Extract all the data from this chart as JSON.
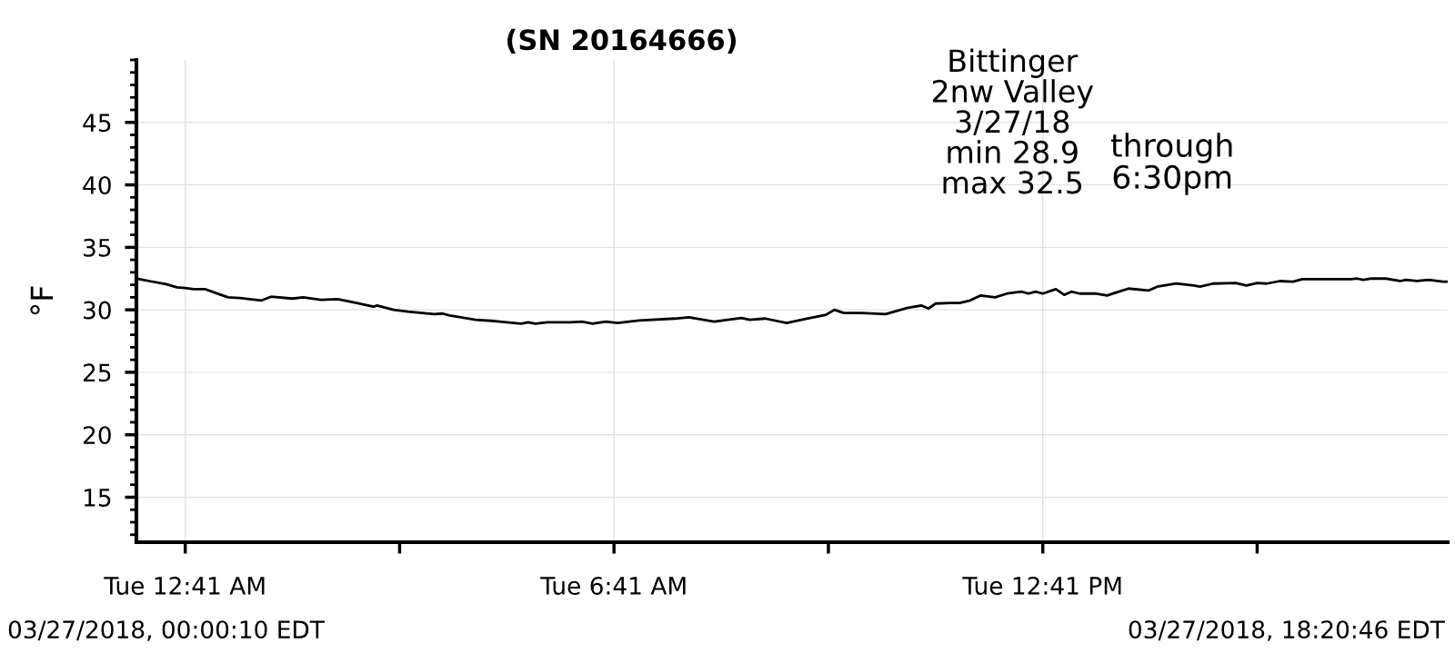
{
  "chart_data": {
    "type": "line",
    "title": "(SN 20164666)",
    "ylabel": "°F",
    "annotations": [
      "Bittinger\n2nw Valley\n3/27/18\nmin 28.9\nmax 32.5",
      "through\n6:30pm",
      "03/27/2018, 00:00:10 EDT",
      "03/27/2018, 18:20:46 EDT"
    ],
    "xlim": [
      "2018-03-27T00:00",
      "2018-03-27T18:21"
    ],
    "ylim": [
      11.4,
      50
    ],
    "xticks": [
      {
        "value": "2018-03-27T00:41",
        "label": "Tue 12:41 AM"
      },
      {
        "value": "2018-03-27T03:41",
        "label": null
      },
      {
        "value": "2018-03-27T06:41",
        "label": "Tue 6:41 AM"
      },
      {
        "value": "2018-03-27T09:41",
        "label": null
      },
      {
        "value": "2018-03-27T12:41",
        "label": "Tue 12:41 PM"
      },
      {
        "value": "2018-03-27T15:41",
        "label": null
      }
    ],
    "yticks": [
      15,
      20,
      25,
      30,
      35,
      40,
      45
    ],
    "grid": true,
    "legend": false,
    "marker": "none",
    "line_style": "solid",
    "series": [
      {
        "color": "#000000",
        "x": [
          "2018-03-27T00:00",
          "2018-03-27T00:11",
          "2018-03-27T00:25",
          "2018-03-27T00:34",
          "2018-03-27T00:41",
          "2018-03-27T00:48",
          "2018-03-27T00:58",
          "2018-03-27T01:05",
          "2018-03-27T01:17",
          "2018-03-27T01:27",
          "2018-03-27T01:45",
          "2018-03-27T01:53",
          "2018-03-27T02:11",
          "2018-03-27T02:20",
          "2018-03-27T02:35",
          "2018-03-27T02:49",
          "2018-03-27T03:05",
          "2018-03-27T03:19",
          "2018-03-27T03:22",
          "2018-03-27T03:36",
          "2018-03-27T03:48",
          "2018-03-27T04:10",
          "2018-03-27T04:17",
          "2018-03-27T04:23",
          "2018-03-27T04:45",
          "2018-03-27T05:01",
          "2018-03-27T05:23",
          "2018-03-27T05:29",
          "2018-03-27T05:35",
          "2018-03-27T05:45",
          "2018-03-27T06:04",
          "2018-03-27T06:14",
          "2018-03-27T06:23",
          "2018-03-27T06:34",
          "2018-03-27T06:44",
          "2018-03-27T07:02",
          "2018-03-27T07:32",
          "2018-03-27T07:44",
          "2018-03-27T08:05",
          "2018-03-27T08:28",
          "2018-03-27T08:35",
          "2018-03-27T08:48",
          "2018-03-27T09:06",
          "2018-03-27T09:21",
          "2018-03-27T09:39",
          "2018-03-27T09:46",
          "2018-03-27T09:54",
          "2018-03-27T10:09",
          "2018-03-27T10:29",
          "2018-03-27T10:47",
          "2018-03-27T10:59",
          "2018-03-27T11:05",
          "2018-03-27T11:11",
          "2018-03-27T11:23",
          "2018-03-27T11:31",
          "2018-03-27T11:40",
          "2018-03-27T11:49",
          "2018-03-27T12:01",
          "2018-03-27T12:11",
          "2018-03-27T12:23",
          "2018-03-27T12:29",
          "2018-03-27T12:35",
          "2018-03-27T12:41",
          "2018-03-27T12:52",
          "2018-03-27T12:59",
          "2018-03-27T13:05",
          "2018-03-27T13:12",
          "2018-03-27T13:25",
          "2018-03-27T13:35",
          "2018-03-27T13:43",
          "2018-03-27T13:53",
          "2018-03-27T14:10",
          "2018-03-27T14:17",
          "2018-03-27T14:33",
          "2018-03-27T14:48",
          "2018-03-27T14:53",
          "2018-03-27T15:04",
          "2018-03-27T15:23",
          "2018-03-27T15:32",
          "2018-03-27T15:41",
          "2018-03-27T15:49",
          "2018-03-27T16:00",
          "2018-03-27T16:11",
          "2018-03-27T16:19",
          "2018-03-27T17:00",
          "2018-03-27T17:05",
          "2018-03-27T17:10",
          "2018-03-27T17:17",
          "2018-03-27T17:29",
          "2018-03-27T17:41",
          "2018-03-27T17:46",
          "2018-03-27T17:55",
          "2018-03-27T18:05",
          "2018-03-27T18:17",
          "2018-03-27T18:20"
        ],
        "values": [
          32.5,
          32.3,
          32.05,
          31.8,
          31.75,
          31.65,
          31.65,
          31.4,
          31.0,
          30.95,
          30.75,
          31.05,
          30.9,
          31.0,
          30.8,
          30.85,
          30.55,
          30.25,
          30.35,
          30.0,
          29.85,
          29.65,
          29.7,
          29.55,
          29.2,
          29.1,
          28.9,
          29.0,
          28.9,
          29.0,
          29.0,
          29.05,
          28.9,
          29.05,
          28.95,
          29.15,
          29.3,
          29.4,
          29.05,
          29.35,
          29.2,
          29.3,
          28.95,
          29.25,
          29.6,
          30.0,
          29.75,
          29.75,
          29.65,
          30.15,
          30.35,
          30.1,
          30.5,
          30.55,
          30.55,
          30.75,
          31.15,
          31.0,
          31.3,
          31.45,
          31.3,
          31.45,
          31.3,
          31.65,
          31.2,
          31.45,
          31.3,
          31.3,
          31.15,
          31.4,
          31.7,
          31.55,
          31.85,
          32.1,
          31.95,
          31.85,
          32.1,
          32.15,
          31.95,
          32.15,
          32.1,
          32.3,
          32.25,
          32.45,
          32.45,
          32.5,
          32.4,
          32.5,
          32.5,
          32.3,
          32.4,
          32.3,
          32.4,
          32.25,
          32.25
        ]
      }
    ]
  }
}
